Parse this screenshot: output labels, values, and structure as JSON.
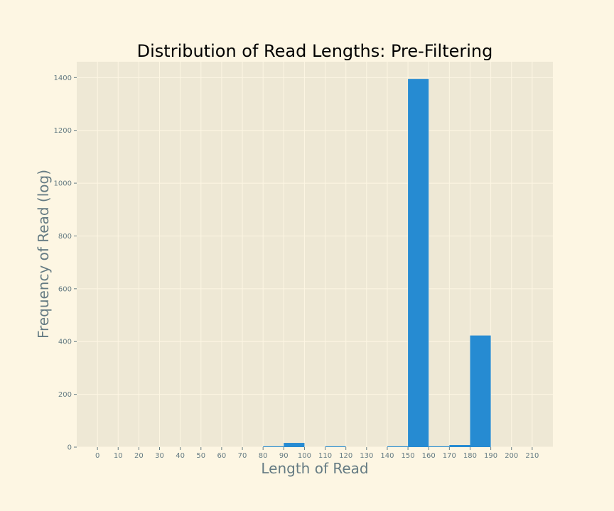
{
  "colors": {
    "figure_background": "#fdf6e3",
    "axes_background": "#eee8d5",
    "grid": "#fdf6e3",
    "bar": "#268bd2",
    "tick_text": "#657b83",
    "title_text": "#000000"
  },
  "chart_data": {
    "type": "bar",
    "title": "Distribution of Read Lengths: Pre-Filtering",
    "xlabel": "Length of Read",
    "ylabel": "Frequency of Read (log)",
    "xlim": [
      -10,
      220
    ],
    "ylim": [
      0,
      1460
    ],
    "grid": true,
    "xticks": [
      0,
      10,
      20,
      30,
      40,
      50,
      60,
      70,
      80,
      90,
      100,
      110,
      120,
      130,
      140,
      150,
      160,
      170,
      180,
      190,
      200,
      210
    ],
    "yticks": [
      0,
      200,
      400,
      600,
      800,
      1000,
      1200,
      1400
    ],
    "bin_width": 10,
    "bins": [
      {
        "start": 80,
        "value": 3
      },
      {
        "start": 90,
        "value": 16
      },
      {
        "start": 110,
        "value": 3
      },
      {
        "start": 140,
        "value": 3
      },
      {
        "start": 150,
        "value": 1395
      },
      {
        "start": 160,
        "value": 3
      },
      {
        "start": 170,
        "value": 8
      },
      {
        "start": 180,
        "value": 423
      }
    ]
  }
}
